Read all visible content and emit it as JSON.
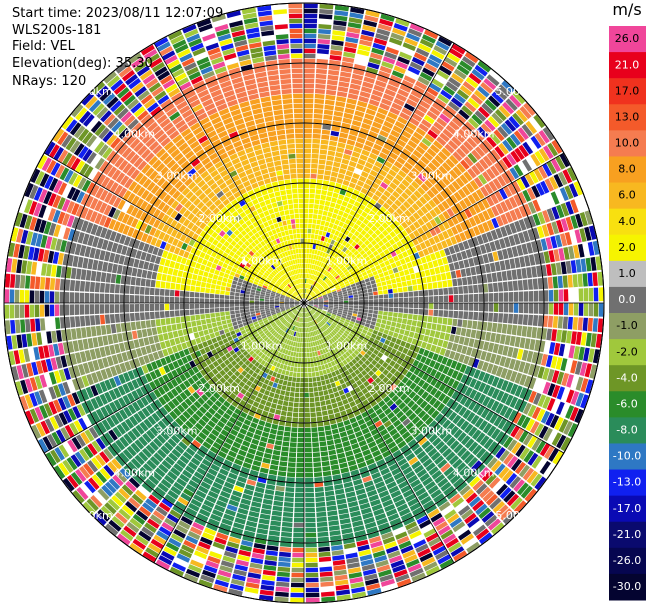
{
  "info": {
    "start_time": "Start time: 2023/08/11 12:07:09",
    "instrument": "WLS200s-181",
    "field": "Field: VEL",
    "elevation": "Elevation(deg): 35.30",
    "nrays": "NRays: 120"
  },
  "colorbar": {
    "unit": "m/s",
    "levels": [
      {
        "label": "26.0",
        "color": "#f0469a"
      },
      {
        "label": "21.0",
        "color": "#e8001c"
      },
      {
        "label": "17.0",
        "color": "#f0321e"
      },
      {
        "label": "13.0",
        "color": "#f45a2a"
      },
      {
        "label": "10.0",
        "color": "#f57c50"
      },
      {
        "label": "8.0",
        "color": "#f8a020"
      },
      {
        "label": "6.0",
        "color": "#f8b820"
      },
      {
        "label": "4.0",
        "color": "#f8e010"
      },
      {
        "label": "2.0",
        "color": "#f6f400"
      },
      {
        "label": "1.0",
        "color": "#bebebe"
      },
      {
        "label": "0.0",
        "color": "#707070"
      },
      {
        "label": "-1.0",
        "color": "#8e9e64"
      },
      {
        "label": "-2.0",
        "color": "#a0c83c"
      },
      {
        "label": "-4.0",
        "color": "#6e9626"
      },
      {
        "label": "-6.0",
        "color": "#2a8c2a"
      },
      {
        "label": "-8.0",
        "color": "#2a8c5a"
      },
      {
        "label": "-10.0",
        "color": "#2e78c4"
      },
      {
        "label": "-13.0",
        "color": "#1020f0"
      },
      {
        "label": "-17.0",
        "color": "#0a0ab4"
      },
      {
        "label": "-21.0",
        "color": "#0a0a6e"
      },
      {
        "label": "-26.0",
        "color": "#060650"
      },
      {
        "label": "-30.0",
        "color": "#040430"
      }
    ]
  },
  "range_labels": [
    "1.00km",
    "2.00km",
    "3.00km",
    "4.00km",
    "5.00km"
  ]
}
